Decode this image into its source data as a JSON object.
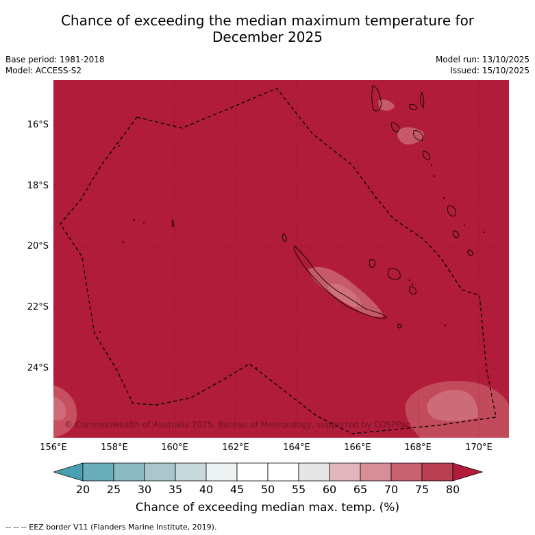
{
  "title": {
    "line1": "Chance of exceeding the median maximum temperature for",
    "line2": "December 2025"
  },
  "meta": {
    "base_period": "Base period: 1981-2018",
    "model": "Model: ACCESS-S2",
    "model_run": "Model run: 13/10/2025",
    "issued": "Issued: 15/10/2025"
  },
  "map": {
    "lat_labels": [
      "16°S",
      "18°S",
      "20°S",
      "22°S",
      "24°S"
    ],
    "lon_labels": [
      "156°E",
      "158°E",
      "160°E",
      "162°E",
      "164°E",
      "166°E",
      "168°E",
      "170°E"
    ],
    "copyright": "© Commonwealth of Australia 2025, Bureau of Meteorology, supported by COSPPac",
    "background_color": "#b11c3a"
  },
  "colorbar": {
    "ticks": [
      "20",
      "25",
      "30",
      "35",
      "40",
      "45",
      "50",
      "55",
      "60",
      "65",
      "70",
      "75",
      "80"
    ],
    "colors": [
      "#4aa0b0",
      "#6aaebb",
      "#8cb9c2",
      "#a9c7cc",
      "#c8d9dc",
      "#ecf1f2",
      "#ffffff",
      "#ffffff",
      "#e6e6e6",
      "#e2b6bc",
      "#d78e98",
      "#c96270",
      "#b94052",
      "#b11c3a"
    ],
    "label": "Chance of exceeding median max. temp. (%)"
  },
  "legend": {
    "eez": "--  --  -- EEZ border V11 (Flanders Marine Institute, 2019)."
  }
}
